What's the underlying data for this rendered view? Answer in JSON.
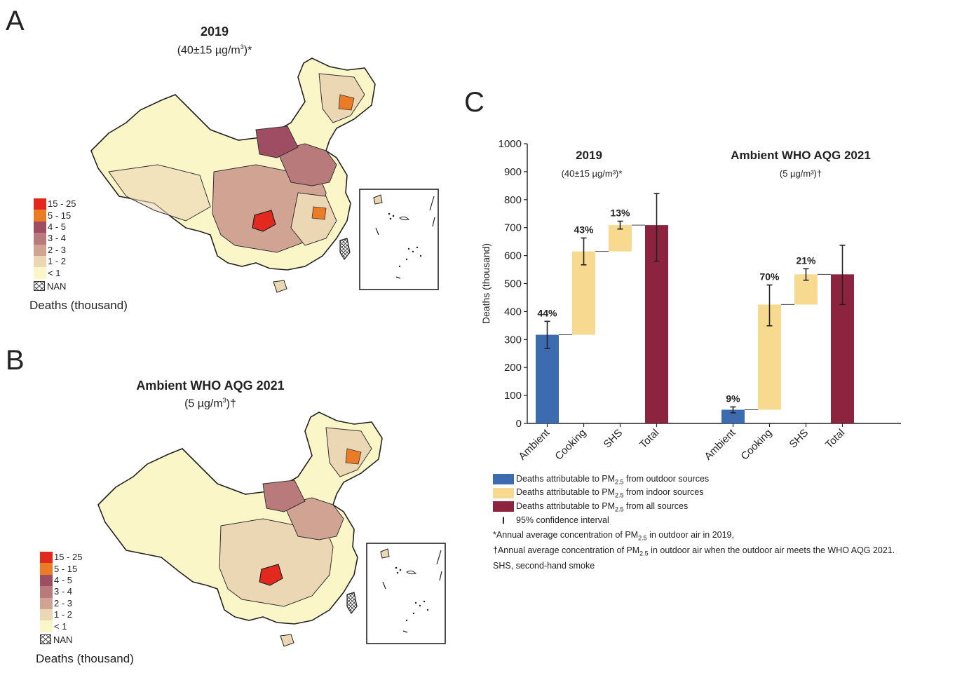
{
  "panels": {
    "a": {
      "letter": "A",
      "title": "2019",
      "subtitle_pre": "(40±15 µg/m",
      "subtitle_sup": "3",
      "subtitle_post": ")*"
    },
    "b": {
      "letter": "B",
      "title": "Ambient WHO AQG 2021",
      "subtitle_pre": "(5 µg/m",
      "subtitle_sup": "3",
      "subtitle_post": ")†"
    },
    "c": {
      "letter": "C"
    }
  },
  "map_legend": {
    "title": "Deaths (thousand)",
    "items": [
      {
        "label": "15 - 25",
        "color": "#e3281e"
      },
      {
        "label": "5 - 15",
        "color": "#ec7b26"
      },
      {
        "label": "4 - 5",
        "color": "#9e4d63"
      },
      {
        "label": "3 - 4",
        "color": "#b87a7a"
      },
      {
        "label": "2 - 3",
        "color": "#d0a392"
      },
      {
        "label": "1 - 2",
        "color": "#ecd7b5"
      },
      {
        "label": "< 1",
        "color": "#faf6c8"
      }
    ],
    "nan_label": "NAN"
  },
  "chart_data": {
    "type": "bar",
    "subtype": "waterfall",
    "ylabel": "Deaths (thousand)",
    "ylim": [
      0,
      1000
    ],
    "yticks": [
      0,
      100,
      200,
      300,
      400,
      500,
      600,
      700,
      800,
      900,
      1000
    ],
    "groups": [
      {
        "title": "2019",
        "subtitle": "(40±15 µg/m³)*",
        "bars": [
          {
            "category": "Ambient",
            "base": 0,
            "top": 317,
            "ci": [
              268,
              365
            ],
            "pct_label": "44%",
            "color": "#3d6bb0"
          },
          {
            "category": "Cooking",
            "base": 317,
            "top": 615,
            "ci": [
              567,
              663
            ],
            "pct_label": "43%",
            "color": "#f7d98f"
          },
          {
            "category": "SHS",
            "base": 615,
            "top": 709,
            "ci": [
              695,
              723
            ],
            "pct_label": "13%",
            "color": "#f7d98f"
          },
          {
            "category": "Total",
            "base": 0,
            "top": 709,
            "ci": [
              580,
              822
            ],
            "pct_label": "",
            "color": "#8c2440"
          }
        ]
      },
      {
        "title": "Ambient WHO AQG 2021",
        "subtitle": "(5 µg/m³)†",
        "bars": [
          {
            "category": "Ambient",
            "base": 0,
            "top": 49,
            "ci": [
              38,
              59
            ],
            "pct_label": "9%",
            "color": "#3d6bb0"
          },
          {
            "category": "Cooking",
            "base": 49,
            "top": 425,
            "ci": [
              349,
              495
            ],
            "pct_label": "70%",
            "color": "#f7d98f"
          },
          {
            "category": "SHS",
            "base": 425,
            "top": 533,
            "ci": [
              512,
              553
            ],
            "pct_label": "21%",
            "color": "#f7d98f"
          },
          {
            "category": "Total",
            "base": 0,
            "top": 533,
            "ci": [
              425,
              637
            ],
            "pct_label": "",
            "color": "#8c2440"
          }
        ]
      }
    ],
    "legend": [
      {
        "pre": "Deaths attributable to PM",
        "sub": "2.5",
        "post": " from outdoor sources",
        "color": "#3d6bb0"
      },
      {
        "pre": "Deaths attributable to PM",
        "sub": "2.5",
        "post": " from indoor sources",
        "color": "#f7d98f"
      },
      {
        "pre": "Deaths attributable to PM",
        "sub": "2.5",
        "post": " from all sources",
        "color": "#8c2440"
      }
    ],
    "ci_label": "95% confidence interval",
    "notes": {
      "n1_pre": "*Annual average concentration of PM",
      "n1_sub": "2.5",
      "n1_post": " in outdoor air in 2019,",
      "n2_pre": "†Annual average concentration of PM",
      "n2_sub": "2.5",
      "n2_post": " in outdoor air when the outdoor air meets the WHO AQG 2021.",
      "n3": "SHS, second-hand smoke"
    }
  }
}
